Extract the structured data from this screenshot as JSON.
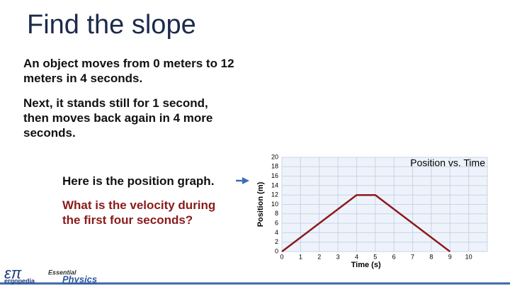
{
  "title": "Find the slope",
  "paragraphs": [
    "An object moves from 0 meters to 12 meters in 4 seconds.",
    "Next, it stands still for 1 second, then moves back again in 4 more seconds."
  ],
  "callout": "Here is the position graph.",
  "question": "What is the velocity during the first four seconds?",
  "logo": {
    "symbol": "επ",
    "name": "ergopedia",
    "series_top": "Essential",
    "series_bottom": "Physics"
  },
  "chart_data": {
    "type": "line",
    "title": "Position vs. Time",
    "x_label": "Time (s)",
    "y_label": "Position (m)",
    "series": [
      {
        "name": "Position",
        "color": "#8b1a1a",
        "x": [
          0,
          4,
          5,
          9
        ],
        "values": [
          0,
          12,
          12,
          0
        ]
      }
    ],
    "xlim": [
      0,
      11
    ],
    "xticks": [
      0,
      1,
      2,
      3,
      4,
      5,
      6,
      7,
      8,
      9,
      10
    ],
    "ylim": [
      0,
      20
    ],
    "yticks": [
      0,
      2,
      4,
      6,
      8,
      10,
      12,
      14,
      16,
      18,
      20
    ],
    "grid": true
  }
}
